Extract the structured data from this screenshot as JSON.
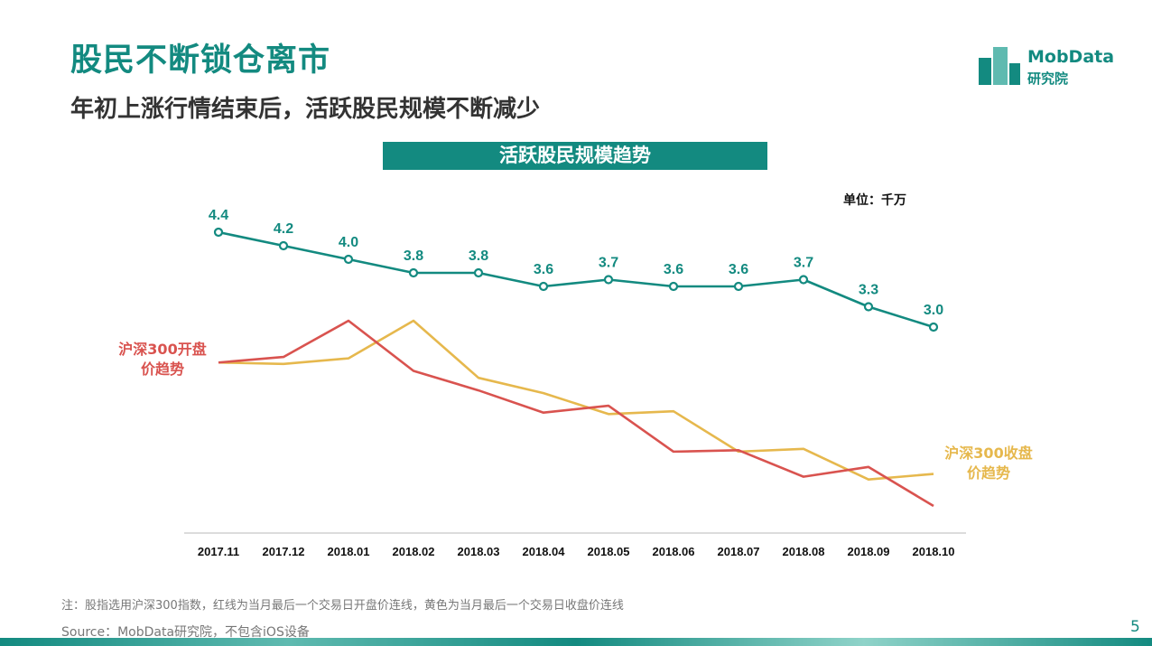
{
  "header": {
    "title": "股民不断锁仓离市",
    "subtitle": "年初上涨行情结束后，活跃股民规模不断减少"
  },
  "logo": {
    "line1": "MobData",
    "line2": "研究院"
  },
  "banner": "活跃股民规模趋势",
  "unit_label": "单位：千万",
  "chart_data": {
    "type": "line",
    "title": "活跃股民规模趋势",
    "categories": [
      "2017.11",
      "2017.12",
      "2018.01",
      "2018.02",
      "2018.03",
      "2018.04",
      "2018.05",
      "2018.06",
      "2018.07",
      "2018.08",
      "2018.09",
      "2018.10"
    ],
    "active_users": {
      "values": [
        4.4,
        4.2,
        4.0,
        3.8,
        3.8,
        3.6,
        3.7,
        3.6,
        3.6,
        3.7,
        3.3,
        3.0
      ],
      "labels": [
        "4.4",
        "4.2",
        "4.0",
        "3.8",
        "3.8",
        "3.6",
        "3.7",
        "3.6",
        "3.6",
        "3.7",
        "3.3",
        "3.0"
      ],
      "color": "#138a80"
    },
    "index_open": {
      "name": "沪深300开盘价趋势",
      "name_lines": [
        "沪深300开盘",
        "价趋势"
      ],
      "values": [
        4080,
        4120,
        4380,
        4020,
        3880,
        3720,
        3770,
        3440,
        3450,
        3260,
        3330,
        3050
      ],
      "color": "#d9534f"
    },
    "index_close": {
      "name": "沪深300收盘价趋势",
      "name_lines": [
        "沪深300收盘",
        "价趋势"
      ],
      "values": [
        4080,
        4070,
        4110,
        4380,
        3970,
        3860,
        3710,
        3730,
        3440,
        3460,
        3240,
        3280
      ],
      "color": "#e6b84d"
    }
  },
  "footer": {
    "note": "注：股指选用沪深300指数，红线为当月最后一个交易日开盘价连线，黄色为当月最后一个交易日收盘价连线",
    "source": "Source：MobData研究院，不包含iOS设备",
    "page": "5"
  }
}
